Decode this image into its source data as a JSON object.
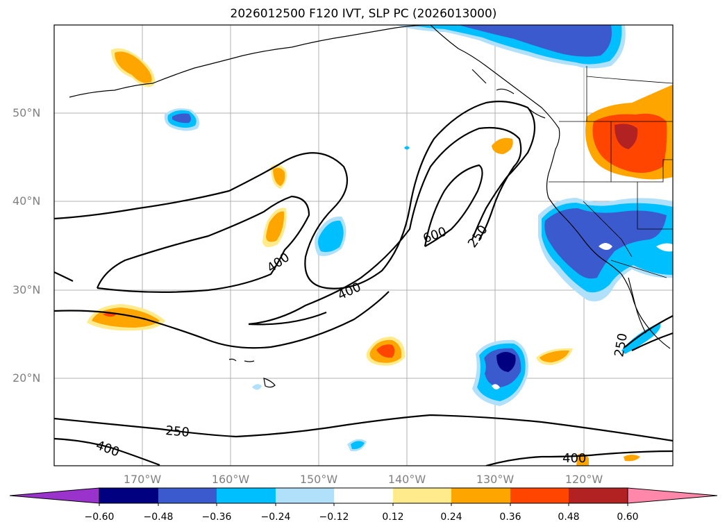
{
  "title": "2026012500 F120 IVT, SLP PC (2026013000)",
  "lat_labels": [
    "50°N",
    "40°N",
    "30°N",
    "20°N"
  ],
  "lon_labels": [
    "170°W",
    "160°W",
    "150°W",
    "140°W",
    "130°W",
    "120°W"
  ],
  "colorbar": {
    "ticks": [
      "−0.60",
      "−0.48",
      "−0.36",
      "−0.24",
      "−0.12",
      "0.12",
      "0.24",
      "0.36",
      "0.48",
      "0.60"
    ],
    "colors": [
      "#9933cc",
      "#000080",
      "#3a5acd",
      "#00bfff",
      "#b0e0fa",
      "#ffffff",
      "#ffeb8c",
      "#ffa500",
      "#ff4500",
      "#b22222",
      "#ff88aa"
    ]
  },
  "contour_labels": {
    "c400_a": "400",
    "c600": "600",
    "c250_a": "250",
    "c400_b": "400",
    "c250_b": "250",
    "c400_c": "400",
    "c250_c": "250",
    "c400_d": "400"
  }
}
